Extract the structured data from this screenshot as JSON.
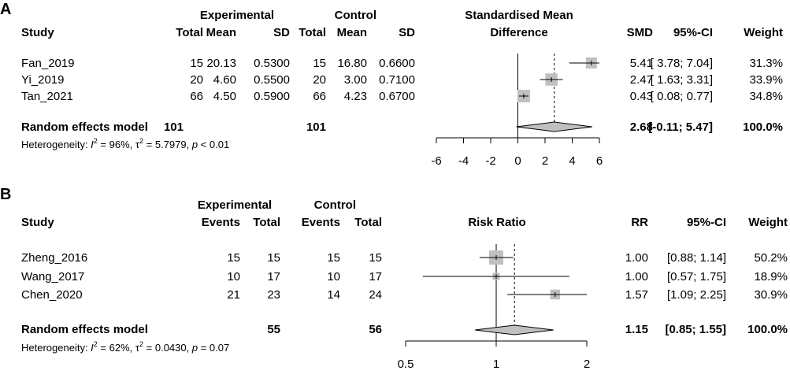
{
  "panels": [
    {
      "id": "A",
      "label": "A",
      "header": {
        "group1": "Experimental",
        "group2": "Control",
        "effect_title_1": "Standardised Mean",
        "effect_title_2": "Difference",
        "study": "Study",
        "cols": [
          "Total",
          "Mean",
          "SD",
          "Total",
          "Mean",
          "SD"
        ],
        "est": "SMD",
        "ci": "95%-CI",
        "weight": "Weight"
      },
      "rows": [
        {
          "study": "Fan_2019",
          "cells": [
            "15",
            "20.13",
            "0.5300",
            "15",
            "16.80",
            "0.6600"
          ],
          "est": "5.41",
          "ci": "[ 3.78; 7.04]",
          "weight": "31.3%"
        },
        {
          "study": "Yi_2019",
          "cells": [
            "20",
            "4.60",
            "0.5500",
            "20",
            "3.00",
            "0.7100"
          ],
          "est": "2.47",
          "ci": "[ 1.63; 3.31]",
          "weight": "33.9%"
        },
        {
          "study": "Tan_2021",
          "cells": [
            "66",
            "4.50",
            "0.5900",
            "66",
            "4.23",
            "0.6700"
          ],
          "est": "0.43",
          "ci": "[ 0.08; 0.77]",
          "weight": "34.8%"
        }
      ],
      "summary": {
        "label": "Random effects model",
        "cells": [
          "101",
          "101"
        ],
        "est": "2.68",
        "ci": "[-0.11; 5.47]",
        "weight": "100.0%"
      },
      "heterogeneity": {
        "prefix": "Heterogeneity: ",
        "i2_symbol": "I",
        "i2_sup": "2",
        "i2_value": " = 96%, ",
        "tau_symbol": "τ",
        "tau_sup": "2",
        "tau_value": " = 5.7979, ",
        "p_symbol": "p",
        "p_value": " < 0.01"
      }
    },
    {
      "id": "B",
      "label": "B",
      "header": {
        "group1": "Experimental",
        "group2": "Control",
        "effect_title_1": "Risk Ratio",
        "effect_title_2": "",
        "study": "Study",
        "cols": [
          "Events",
          "Total",
          "Events",
          "Total"
        ],
        "est": "RR",
        "ci": "95%-CI",
        "weight": "Weight"
      },
      "rows": [
        {
          "study": "Zheng_2016",
          "cells": [
            "15",
            "15",
            "15",
            "15"
          ],
          "est": "1.00",
          "ci": "[0.88; 1.14]",
          "weight": "50.2%"
        },
        {
          "study": "Wang_2017",
          "cells": [
            "10",
            "17",
            "10",
            "17"
          ],
          "est": "1.00",
          "ci": "[0.57; 1.75]",
          "weight": "18.9%"
        },
        {
          "study": "Chen_2020",
          "cells": [
            "21",
            "23",
            "14",
            "24"
          ],
          "est": "1.57",
          "ci": "[1.09; 2.25]",
          "weight": "30.9%"
        }
      ],
      "summary": {
        "label": "Random effects model",
        "cells": [
          "55",
          "56"
        ],
        "est": "1.15",
        "ci": "[0.85; 1.55]",
        "weight": "100.0%"
      },
      "heterogeneity": {
        "prefix": "Heterogeneity: ",
        "i2_symbol": "I",
        "i2_sup": "2",
        "i2_value": " = 62%, ",
        "tau_symbol": "τ",
        "tau_sup": "2",
        "tau_value": " = 0.0430, ",
        "p_symbol": "p",
        "p_value": " = 0.07"
      }
    }
  ],
  "chart_data": [
    {
      "type": "forest",
      "panel": "A",
      "title": "Standardised Mean Difference",
      "scale": "linear",
      "xlim": [
        -6,
        6
      ],
      "ticks": [
        -6,
        -4,
        -2,
        0,
        2,
        4,
        6
      ],
      "tick_labels": [
        "-6",
        "-4",
        "-2",
        "0",
        "2",
        "4",
        "6"
      ],
      "null_value": 0,
      "studies": [
        {
          "name": "Fan_2019",
          "estimate": 5.41,
          "lower": 3.78,
          "upper": 7.04,
          "weight": 31.3
        },
        {
          "name": "Yi_2019",
          "estimate": 2.47,
          "lower": 1.63,
          "upper": 3.31,
          "weight": 33.9
        },
        {
          "name": "Tan_2021",
          "estimate": 0.43,
          "lower": 0.08,
          "upper": 0.77,
          "weight": 34.8
        }
      ],
      "pooled": {
        "name": "Random effects model",
        "estimate": 2.68,
        "lower": -0.11,
        "upper": 5.47
      }
    },
    {
      "type": "forest",
      "panel": "B",
      "title": "Risk Ratio",
      "scale": "log",
      "xlim": [
        0.5,
        2
      ],
      "ticks": [
        0.5,
        1,
        2
      ],
      "tick_labels": [
        "0.5",
        "1",
        "2"
      ],
      "null_value": 1,
      "studies": [
        {
          "name": "Zheng_2016",
          "estimate": 1.0,
          "lower": 0.88,
          "upper": 1.14,
          "weight": 50.2
        },
        {
          "name": "Wang_2017",
          "estimate": 1.0,
          "lower": 0.57,
          "upper": 1.75,
          "weight": 18.9
        },
        {
          "name": "Chen_2020",
          "estimate": 1.57,
          "lower": 1.09,
          "upper": 2.25,
          "weight": 30.9
        }
      ],
      "pooled": {
        "name": "Random effects model",
        "estimate": 1.15,
        "lower": 0.85,
        "upper": 1.55
      }
    }
  ],
  "colors": {
    "square": "#c0c0c0",
    "diamond": "#c0c0c0",
    "line": "#000000",
    "text": "#000000",
    "background": "#ffffff"
  }
}
